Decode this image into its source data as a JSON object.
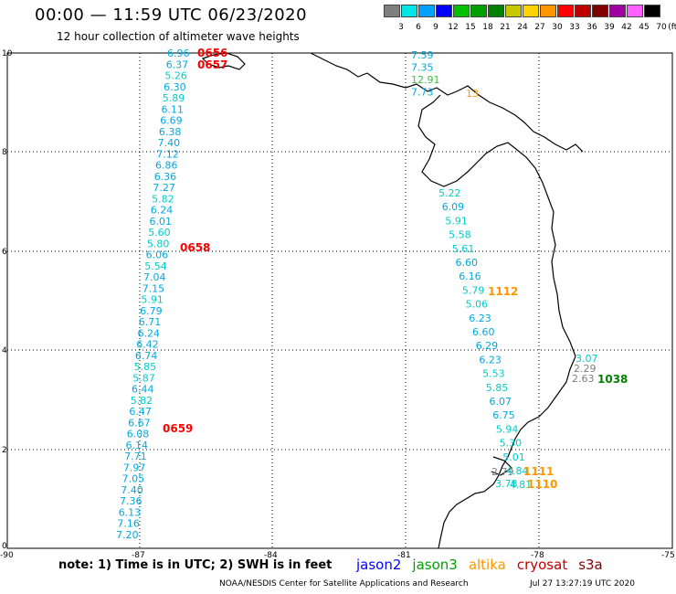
{
  "header": {
    "title": "00:00 — 11:59 UTC 06/23/2020",
    "subtitle": "12 hour collection of altimeter wave heights"
  },
  "legend": {
    "colors": [
      "#7f7f7f",
      "#00e5e5",
      "#00a0ff",
      "#0000ff",
      "#00c000",
      "#00a000",
      "#008000",
      "#c8c800",
      "#ffd200",
      "#ff9600",
      "#ff0000",
      "#c00000",
      "#800000",
      "#a000a0",
      "#ff60ff",
      "#000000"
    ],
    "labels": [
      "3",
      "6",
      "9",
      "12",
      "15",
      "18",
      "21",
      "24",
      "27",
      "30",
      "33",
      "36",
      "39",
      "42",
      "45",
      "70"
    ],
    "unit": "(ft)"
  },
  "axes": {
    "x_ticks": [
      "-90",
      "-87",
      "-84",
      "-81",
      "-78",
      "-75"
    ],
    "y_ticks": [
      "10",
      "8",
      "6",
      "4",
      "2",
      "0"
    ]
  },
  "tracks": {
    "west_values": [
      "6.96",
      "6.37",
      "5.26",
      "6.30",
      "5.89",
      "6.11",
      "6.69",
      "6.38",
      "7.40",
      "7.12",
      "6.86",
      "6.36",
      "7.27",
      "5.82",
      "6.24",
      "6.01",
      "5.60",
      "5.80",
      "6.06",
      "5.54",
      "7.04",
      "7.15",
      "5.91",
      "6.79",
      "6.71",
      "6.24",
      "6.42",
      "6.74",
      "5.85",
      "5.87",
      "6.44",
      "5.82",
      "6.47",
      "6.67",
      "6.08",
      "6.14",
      "7.71",
      "7.97",
      "7.05",
      "7.40",
      "7.36",
      "6.13",
      "7.16",
      "7.20"
    ],
    "north_values": [
      "7.59",
      "7.35",
      "12.91",
      "7.73"
    ],
    "north_overlap": "13",
    "central_values": [
      "5.22",
      "6.09",
      "5.91",
      "5.58",
      "5.61",
      "6.60",
      "6.16",
      "5.79",
      "5.06",
      "6.23",
      "6.60",
      "6.29",
      "6.23",
      "5.53",
      "5.85",
      "6.07",
      "6.75",
      "5.94",
      "5.30",
      "5.01",
      "4.84",
      "4.81"
    ],
    "coastal_values": [
      "2.79",
      "3.78"
    ],
    "east_values": [
      "3.07",
      "2.29",
      "2.63"
    ]
  },
  "passes": {
    "cryosat": [
      "0656",
      "0657",
      "0658",
      "0659"
    ],
    "altika": [
      "1112",
      "1111",
      "1110"
    ],
    "jason3": [
      "1038"
    ]
  },
  "footer": {
    "note": "note:  1) Time is in UTC;  2) SWH is in feet",
    "satellites": [
      {
        "name": "jason2",
        "color": "#0000ff"
      },
      {
        "name": "jason3",
        "color": "#00a000"
      },
      {
        "name": "altika",
        "color": "#ff9600"
      },
      {
        "name": "cryosat",
        "color": "#c00000"
      },
      {
        "name": "s3a",
        "color": "#800000"
      }
    ],
    "credit": "NOAA/NESDIS Center for Satellite Applications and Research",
    "timestamp": "Jul 27 13:27:19 UTC 2020"
  }
}
